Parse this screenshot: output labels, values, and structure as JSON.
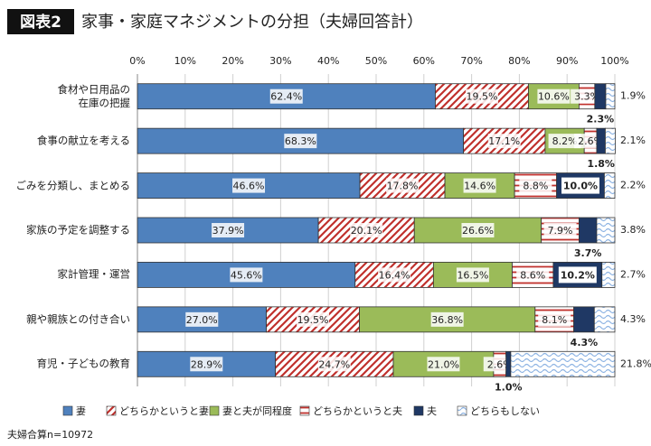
{
  "chart_data": {
    "type": "stacked-bar-horizontal",
    "figure_label": "図表2",
    "title": "家事・家庭マネジメントの分担（夫婦回答計）",
    "note": "夫婦合算n=10972",
    "categories": [
      "食材や日用品の\n在庫の把握",
      "食事の献立を考える",
      "ごみを分類し、まとめる",
      "家族の予定を調整する",
      "家計管理・運営",
      "親や親族との付き合い",
      "育児・子どもの教育"
    ],
    "xlim": [
      0,
      100
    ],
    "xticks": [
      {
        "value": 0,
        "label": "0%"
      },
      {
        "value": 10,
        "label": "10%"
      },
      {
        "value": 20,
        "label": "20%"
      },
      {
        "value": 30,
        "label": "30%"
      },
      {
        "value": 40,
        "label": "40%"
      },
      {
        "value": 50,
        "label": "50%"
      },
      {
        "value": 60,
        "label": "60%"
      },
      {
        "value": 70,
        "label": "70%"
      },
      {
        "value": 80,
        "label": "80%"
      },
      {
        "value": 90,
        "label": "90%"
      },
      {
        "value": 100,
        "label": "100%"
      }
    ],
    "grid": true,
    "series": [
      {
        "name": "妻",
        "color": "#4f81bd",
        "pattern": "solid",
        "values": [
          62.4,
          68.3,
          46.6,
          37.9,
          45.6,
          27.0,
          28.9
        ],
        "value_labels": [
          "62.4%",
          "68.3%",
          "46.6%",
          "37.9%",
          "45.6%",
          "27.0%",
          "28.9%"
        ]
      },
      {
        "name": "どちらかというと妻",
        "color": "#c0302c",
        "pattern": "diagonal",
        "values": [
          19.5,
          17.1,
          17.8,
          20.1,
          16.4,
          19.5,
          24.7
        ],
        "value_labels": [
          "19.5%",
          "17.1%",
          "17.8%",
          "20.1%",
          "16.4%",
          "19.5%",
          "24.7%"
        ]
      },
      {
        "name": "妻と夫が同程度",
        "color": "#9bbb59",
        "pattern": "solid",
        "values": [
          10.6,
          8.2,
          14.6,
          26.6,
          16.5,
          36.8,
          21.0
        ],
        "value_labels": [
          "10.6%",
          "8.2%",
          "14.6%",
          "26.6%",
          "16.5%",
          "36.8%",
          "21.0%"
        ]
      },
      {
        "name": "どちらかというと夫",
        "color": "#c0302c",
        "pattern": "horizontal",
        "values": [
          3.3,
          2.6,
          8.8,
          7.9,
          8.6,
          8.1,
          2.6
        ],
        "value_labels": [
          "3.3%",
          "2.6%",
          "8.8%",
          "7.9%",
          "8.6%",
          "8.1%",
          "2.6%"
        ]
      },
      {
        "name": "夫",
        "color": "#1f3864",
        "pattern": "solid",
        "values": [
          2.3,
          1.8,
          10.0,
          3.7,
          10.2,
          4.3,
          1.0
        ],
        "value_labels": [
          "2.3%",
          "1.8%",
          "10.0%",
          "3.7%",
          "10.2%",
          "4.3%",
          "1.0%"
        ]
      },
      {
        "name": "どちらもしない",
        "color": "#8eb4e3",
        "pattern": "wave",
        "values": [
          1.9,
          2.1,
          2.2,
          3.8,
          2.7,
          4.3,
          21.8
        ],
        "value_labels": [
          "1.9%",
          "2.1%",
          "2.2%",
          "3.8%",
          "2.7%",
          "4.3%",
          "21.8%"
        ]
      }
    ]
  }
}
